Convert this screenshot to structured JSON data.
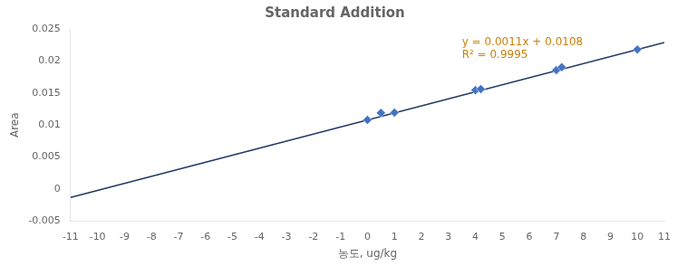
{
  "chart_data": {
    "type": "scatter",
    "title": "Standard Addition",
    "xlabel": "농도, ug/kg",
    "ylabel": "Area",
    "xlim": [
      -11,
      11
    ],
    "ylim": [
      -0.005,
      0.025
    ],
    "xticks": [
      -11,
      -10,
      -9,
      -8,
      -7,
      -6,
      -5,
      -4,
      -3,
      -2,
      -1,
      0,
      1,
      2,
      3,
      4,
      5,
      6,
      7,
      8,
      9,
      10,
      11
    ],
    "yticks": [
      -0.005,
      0,
      0.005,
      0.01,
      0.015,
      0.02,
      0.025
    ],
    "grid": false,
    "series": [
      {
        "type": "scatter",
        "color": "#4472C4",
        "marker": "diamond",
        "x": [
          0,
          0.5,
          1.0,
          4.0,
          4.2,
          7.0,
          7.2,
          10.0
        ],
        "values": [
          0.0108,
          0.0119,
          0.01195,
          0.01544,
          0.01562,
          0.01857,
          0.01902,
          0.0218
        ]
      },
      {
        "type": "line",
        "color": "#1F3864",
        "line_style": "solid",
        "x": [
          -11,
          11
        ],
        "values": [
          -0.0013,
          0.0229
        ]
      }
    ],
    "annotations": [
      {
        "text": "y = 0.0011x + 0.0108",
        "x": 3.5,
        "y": 0.0238,
        "color": "#C8820A"
      },
      {
        "text": "R² = 0.9995",
        "x": 3.5,
        "y": 0.0218,
        "color": "#C8820A"
      }
    ]
  }
}
